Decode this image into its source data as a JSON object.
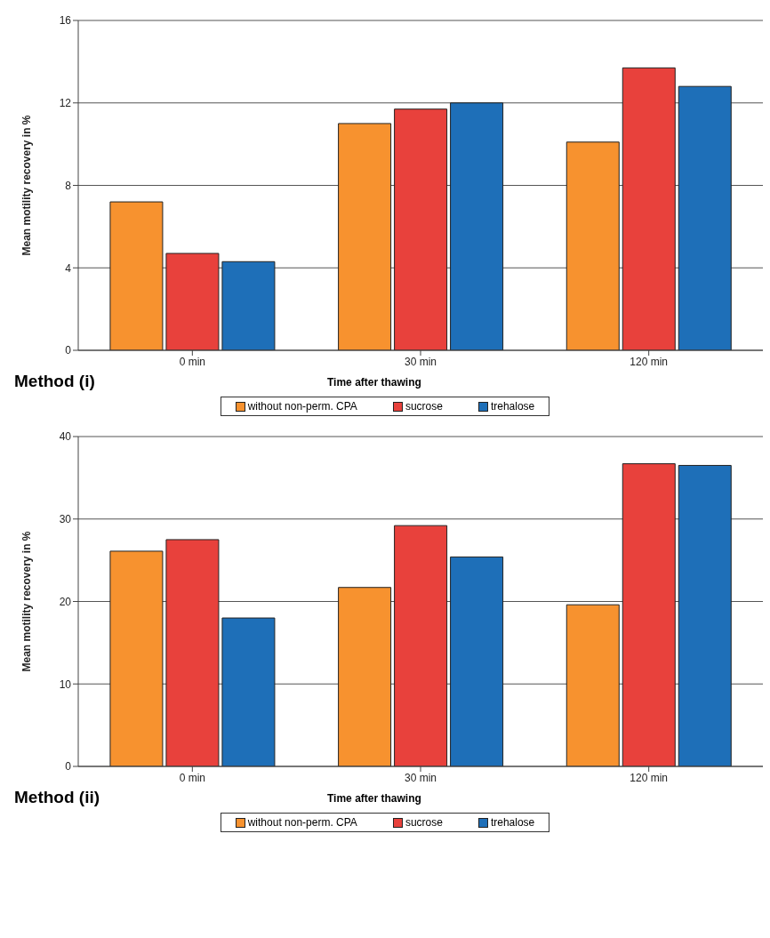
{
  "chart_data": [
    {
      "type": "bar",
      "title": "Method (i)",
      "xlabel": "Time after thawing",
      "ylabel": "Mean motility recovery in %",
      "categories": [
        "0 min",
        "30 min",
        "120 min"
      ],
      "series": [
        {
          "name": "without non-perm. CPA",
          "color": "#f7922f",
          "values": [
            7.2,
            11.0,
            10.1
          ]
        },
        {
          "name": "sucrose",
          "color": "#e8413c",
          "values": [
            4.7,
            11.7,
            13.7
          ]
        },
        {
          "name": "trehalose",
          "color": "#1e6fb8",
          "values": [
            4.3,
            12.0,
            12.8
          ]
        }
      ],
      "ylim": [
        0,
        16
      ],
      "yticks": [
        0,
        4,
        8,
        12,
        16
      ],
      "grid": "y",
      "legend": "bottom"
    },
    {
      "type": "bar",
      "title": "Method (ii)",
      "xlabel": "Time after thawing",
      "ylabel": "Mean motility recovery in %",
      "categories": [
        "0 min",
        "30 min",
        "120 min"
      ],
      "series": [
        {
          "name": "without non-perm. CPA",
          "color": "#f7922f",
          "values": [
            26.1,
            21.7,
            19.6
          ]
        },
        {
          "name": "sucrose",
          "color": "#e8413c",
          "values": [
            27.5,
            29.2,
            36.7
          ]
        },
        {
          "name": "trehalose",
          "color": "#1e6fb8",
          "values": [
            18.0,
            25.4,
            36.5
          ]
        }
      ],
      "ylim": [
        0,
        40
      ],
      "yticks": [
        0,
        10,
        20,
        30,
        40
      ],
      "grid": "y",
      "legend": "bottom"
    }
  ]
}
